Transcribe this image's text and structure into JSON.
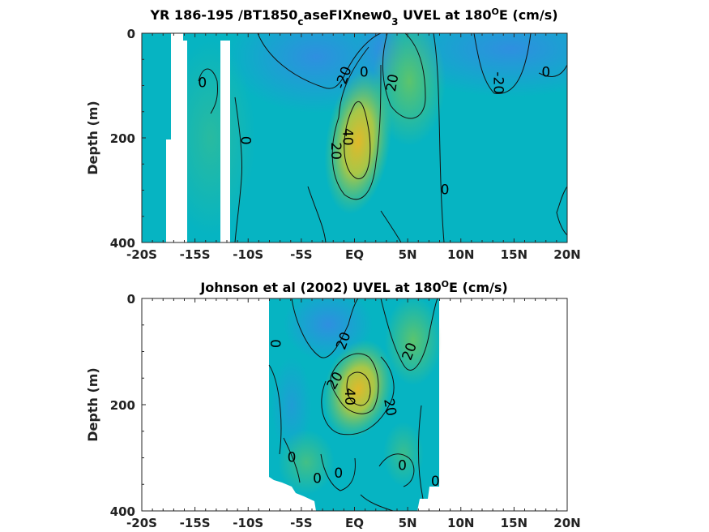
{
  "colors": {
    "base": "#06b4c2",
    "negative": "#2f8fe0",
    "positive_mid": "#5cc46d",
    "positive_high": "#d9ba2c",
    "land": "#ffffff",
    "contour": "#111111"
  },
  "chart_data": [
    {
      "type": "heatmap",
      "panel": "model",
      "title_parts": {
        "main": "YR 186-195 /BT1850",
        "sub1": "c",
        "mid": "aseFIXnew0",
        "sub2": "3",
        "tail": " UVEL at 180",
        "sup": "O",
        "end": "E (cm/s)"
      },
      "xlabel": "",
      "ylabel": "Depth (m)",
      "xlim": [
        -20,
        20
      ],
      "ylim": [
        0,
        400
      ],
      "y_reversed": true,
      "x_ticks": [
        -20,
        -15,
        -10,
        -5,
        0,
        5,
        10,
        15,
        20
      ],
      "x_tick_labels": [
        "-20S",
        "-15S",
        "-10S",
        "-5S",
        "EQ",
        "5N",
        "10N",
        "15N",
        "20N"
      ],
      "y_ticks": [
        0,
        200,
        400
      ],
      "y_tick_labels": [
        "0",
        "200",
        "400"
      ],
      "missing_regions_lat": [
        [
          -17.6,
          -15.9
        ],
        [
          -13.0,
          -12.1
        ]
      ],
      "features": [
        {
          "kind": "negative",
          "lat": -4.5,
          "depth": 60,
          "value": -25
        },
        {
          "kind": "negative",
          "lat": 14.0,
          "depth": 40,
          "value": -25
        },
        {
          "kind": "negative",
          "lat": 2.5,
          "depth": 40,
          "value": -15
        },
        {
          "kind": "positive_core",
          "lat": 0.7,
          "depth": 210,
          "value": 45
        },
        {
          "kind": "positive",
          "lat": 5.0,
          "depth": 90,
          "value": 25
        },
        {
          "kind": "positive",
          "lat": -12.0,
          "depth": 200,
          "value": 5
        }
      ],
      "contour_labels": [
        {
          "text": "-20",
          "lat": -1.0,
          "depth": 85,
          "rotate": -70
        },
        {
          "text": "0",
          "lat": 0.9,
          "depth": 75,
          "rotate": 0
        },
        {
          "text": "20",
          "lat": 3.6,
          "depth": 95,
          "rotate": -80
        },
        {
          "text": "-20",
          "lat": 13.5,
          "depth": 95,
          "rotate": 90
        },
        {
          "text": "0",
          "lat": 18.0,
          "depth": 75,
          "rotate": 0
        },
        {
          "text": "0",
          "lat": -14.3,
          "depth": 95,
          "rotate": 0
        },
        {
          "text": "0",
          "lat": -10.3,
          "depth": 205,
          "rotate": 90
        },
        {
          "text": "40",
          "lat": -0.7,
          "depth": 198,
          "rotate": 90
        },
        {
          "text": "20",
          "lat": -1.8,
          "depth": 225,
          "rotate": 90
        },
        {
          "text": "0",
          "lat": 8.5,
          "depth": 300,
          "rotate": 0
        }
      ]
    },
    {
      "type": "heatmap",
      "panel": "observation",
      "title_parts": {
        "main": "Johnson et al (2002) UVEL at 180",
        "sup": "O",
        "end": "E (cm/s)"
      },
      "xlabel": "",
      "ylabel": "Depth (m)",
      "xlim": [
        -20,
        20
      ],
      "ylim": [
        0,
        400
      ],
      "y_reversed": true,
      "x_ticks": [
        -20,
        -15,
        -10,
        -5,
        0,
        5,
        10,
        15,
        20
      ],
      "x_tick_labels": [
        "-20S",
        "-15S",
        "-10S",
        "-5S",
        "EQ",
        "5N",
        "10N",
        "15N",
        "20N"
      ],
      "y_ticks": [
        0,
        200,
        400
      ],
      "y_tick_labels": [
        "0",
        "200",
        "400"
      ],
      "data_extent_lat": [
        -8.0,
        8.0
      ],
      "features": [
        {
          "kind": "negative",
          "lat": -3.0,
          "depth": 80,
          "value": -30
        },
        {
          "kind": "positive_core",
          "lat": 0.7,
          "depth": 170,
          "value": 45
        },
        {
          "kind": "positive",
          "lat": 5.5,
          "depth": 60,
          "value": 25
        },
        {
          "kind": "positive",
          "lat": -4.0,
          "depth": 320,
          "value": 20
        }
      ],
      "contour_labels": [
        {
          "text": "0",
          "lat": -7.5,
          "depth": 85,
          "rotate": 90
        },
        {
          "text": "20",
          "lat": -1.0,
          "depth": 80,
          "rotate": -70
        },
        {
          "text": "20",
          "lat": 5.2,
          "depth": 100,
          "rotate": -70
        },
        {
          "text": "20",
          "lat": -1.8,
          "depth": 155,
          "rotate": -60
        },
        {
          "text": "40",
          "lat": -0.5,
          "depth": 185,
          "rotate": 90
        },
        {
          "text": "20",
          "lat": 3.3,
          "depth": 205,
          "rotate": 80
        },
        {
          "text": "0",
          "lat": -5.9,
          "depth": 300,
          "rotate": 0
        },
        {
          "text": "0",
          "lat": -3.5,
          "depth": 340,
          "rotate": 0
        },
        {
          "text": "0",
          "lat": -1.5,
          "depth": 330,
          "rotate": 0
        },
        {
          "text": "0",
          "lat": 4.5,
          "depth": 315,
          "rotate": 0
        },
        {
          "text": "0",
          "lat": 7.6,
          "depth": 345,
          "rotate": 0
        }
      ]
    }
  ]
}
